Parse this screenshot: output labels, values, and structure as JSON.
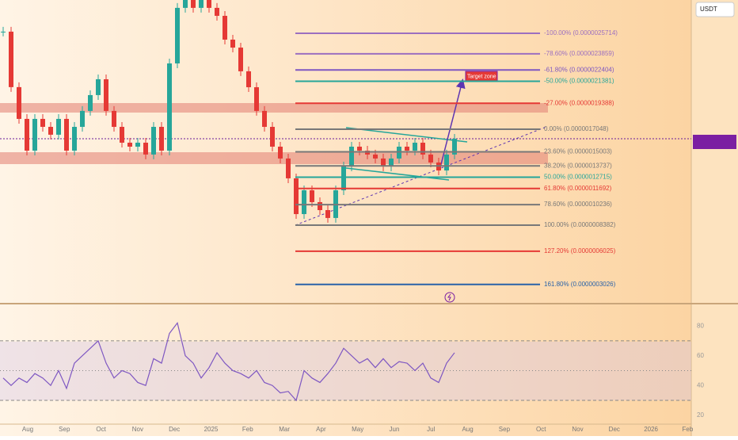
{
  "axis_unit": "USDT",
  "annotation": "Target zone",
  "price": {
    "ylim": [
      1.29e-07,
      2.872e-06
    ],
    "values": [
      2.586e-06,
      2.085e-06,
      1.798e-06,
      1.511e-06,
      1.798e-06,
      1.726e-06,
      1.655e-06,
      1.798e-06,
      1.511e-06,
      1.726e-06,
      1.87e-06,
      2.013e-06,
      2.156e-06,
      1.87e-06,
      1.726e-06,
      1.583e-06,
      1.547e-06,
      1.583e-06,
      1.476e-06,
      1.726e-06,
      1.511e-06,
      2.299e-06,
      2.801e-06,
      2.872e-06,
      2.801e-06,
      2.872e-06,
      2.801e-06,
      2.729e-06,
      2.514e-06,
      2.442e-06,
      2.228e-06,
      2.084e-06,
      1.87e-06,
      1.726e-06,
      1.547e-06,
      1.44e-06,
      1.261e-06,
      9.38e-07,
      1.153e-06,
      1.046e-06,
      9.74e-07,
      9.03e-07,
      1.153e-06,
      1.368e-06,
      1.547e-06,
      1.511e-06,
      1.476e-06,
      1.44e-06,
      1.368e-06,
      1.44e-06,
      1.547e-06,
      1.511e-06,
      1.583e-06,
      1.476e-06,
      1.404e-06,
      1.332e-06,
      1.476e-06,
      1.619e-06
    ]
  },
  "fib_levels": [
    {
      "label": "-100.00% (0.0000025714)",
      "value": 2.5714e-06,
      "color": "#9c6fc0"
    },
    {
      "label": "-78.60% (0.0000023859)",
      "value": 2.3859e-06,
      "color": "#9c6fc0"
    },
    {
      "label": "-61.80% (0.0000022404)",
      "value": 2.2404e-06,
      "color": "#7e57c2"
    },
    {
      "label": "-50.00% (0.0000021381)",
      "value": 2.1381e-06,
      "color": "#26a69a"
    },
    {
      "label": "-27.00% (0.0000019388)",
      "value": 1.9388e-06,
      "color": "#e53935"
    },
    {
      "label": "0.00% (0.0000017048)",
      "value": 1.7048e-06,
      "color": "#787878"
    },
    {
      "label": "23.60% (0.0000015003)",
      "value": 1.5003e-06,
      "color": "#787878"
    },
    {
      "label": "38.20% (0.0000013737)",
      "value": 1.3737e-06,
      "color": "#787878"
    },
    {
      "label": "50.00% (0.0000012715)",
      "value": 1.2715e-06,
      "color": "#26a69a"
    },
    {
      "label": "61.80% (0.0000011692)",
      "value": 1.1692e-06,
      "color": "#e53935"
    },
    {
      "label": "78.60% (0.0000010236)",
      "value": 1.0236e-06,
      "color": "#787878"
    },
    {
      "label": "100.00% (0.0000008382)",
      "value": 8.382e-07,
      "color": "#787878"
    },
    {
      "label": "127.20% (0.0000006025)",
      "value": 6.025e-07,
      "color": "#e53935"
    },
    {
      "label": "161.80% (0.0000003026)",
      "value": 3.026e-07,
      "color": "#2962a8"
    }
  ],
  "rsi": {
    "ylim": [
      14,
      95
    ],
    "yticks": [
      80,
      60,
      40,
      20
    ],
    "bands": [
      70,
      50,
      30
    ],
    "values": [
      45,
      40,
      45,
      42,
      48,
      45,
      40,
      50,
      38,
      55,
      60,
      65,
      70,
      55,
      45,
      50,
      48,
      42,
      40,
      58,
      55,
      75,
      82,
      60,
      55,
      45,
      52,
      62,
      55,
      50,
      48,
      45,
      50,
      42,
      40,
      35,
      36,
      30,
      50,
      45,
      42,
      48,
      55,
      65,
      60,
      55,
      58,
      52,
      58,
      52,
      56,
      55,
      50,
      55,
      45,
      42,
      55,
      62
    ]
  },
  "x_axis_labels": [
    "Aug",
    "Sep",
    "Oct",
    "Nov",
    "Dec",
    "2025",
    "Feb",
    "Mar",
    "Apr",
    "May",
    "Jun",
    "Jul",
    "Aug",
    "Sep",
    "Oct",
    "Nov",
    "Dec",
    "2026",
    "Feb"
  ]
}
